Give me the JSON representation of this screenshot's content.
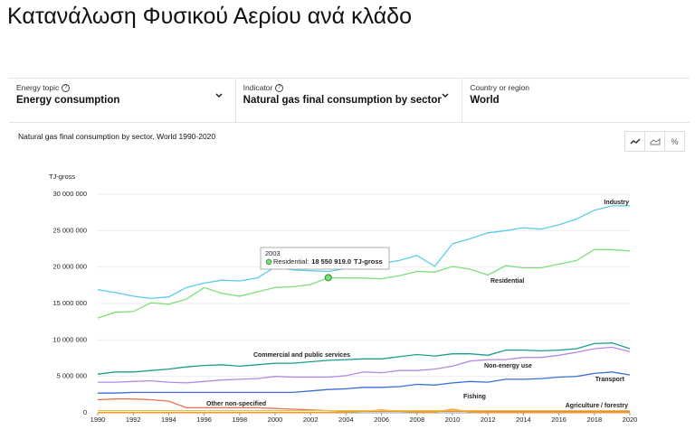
{
  "header": {
    "title": "Κατανάλωση Φυσικού Αερίου ανά κλάδο"
  },
  "selectors": [
    {
      "label": "Energy topic",
      "value": "Energy consumption"
    },
    {
      "label": "Indicator",
      "value": "Natural gas final consumption by sector"
    },
    {
      "label": "Country or region",
      "value": "World"
    }
  ],
  "percent_button": "%",
  "chart_data": {
    "type": "line",
    "title": "Natural gas final consumption by sector, World 1990-2020",
    "ylabel": "TJ-gross",
    "x": [
      1990,
      1991,
      1992,
      1993,
      1994,
      1995,
      1996,
      1997,
      1998,
      1999,
      2000,
      2001,
      2002,
      2003,
      2004,
      2005,
      2006,
      2007,
      2008,
      2009,
      2010,
      2011,
      2012,
      2013,
      2014,
      2015,
      2016,
      2017,
      2018,
      2019,
      2020
    ],
    "xlim": [
      1990,
      2020
    ],
    "xticks": [
      1990,
      1992,
      1994,
      1996,
      1998,
      2000,
      2002,
      2004,
      2006,
      2008,
      2010,
      2012,
      2014,
      2016,
      2018,
      2020
    ],
    "ylim": [
      0,
      30000000
    ],
    "yticks": [
      {
        "value": 0,
        "label": "0"
      },
      {
        "value": 5000000,
        "label": "5 000 000"
      },
      {
        "value": 10000000,
        "label": "10 000 000"
      },
      {
        "value": 15000000,
        "label": "15 000 000"
      },
      {
        "value": 20000000,
        "label": "20 000 000"
      },
      {
        "value": 25000000,
        "label": "25 000 000"
      },
      {
        "value": 30000000,
        "label": "30 000 000"
      }
    ],
    "grid": true,
    "series": [
      {
        "name": "Industry",
        "color": "#5ccbeb",
        "values": [
          16900000,
          16500000,
          16000000,
          15700000,
          15900000,
          17200000,
          17800000,
          18200000,
          18100000,
          18500000,
          20000000,
          19600000,
          19500000,
          19400000,
          19800000,
          20300000,
          20500000,
          20900000,
          21600000,
          20100000,
          23200000,
          23900000,
          24700000,
          25000000,
          25400000,
          25200000,
          25800000,
          26600000,
          27800000,
          28400000,
          28400000
        ]
      },
      {
        "name": "Residential",
        "color": "#7ddf7a",
        "values": [
          13000000,
          13800000,
          13900000,
          15100000,
          14900000,
          15600000,
          17200000,
          16400000,
          16000000,
          16600000,
          17200000,
          17300000,
          17600000,
          18550919,
          18500000,
          18500000,
          18400000,
          18800000,
          19400000,
          19300000,
          20100000,
          19700000,
          18900000,
          20200000,
          19900000,
          19900000,
          20400000,
          20900000,
          22400000,
          22400000,
          22200000
        ]
      },
      {
        "name": "Commercial and public services",
        "color": "#1a9e8c",
        "values": [
          5300000,
          5600000,
          5600000,
          5800000,
          6000000,
          6300000,
          6500000,
          6600000,
          6400000,
          6600000,
          6800000,
          6800000,
          7000000,
          7200000,
          7300000,
          7400000,
          7400000,
          7700000,
          8000000,
          7800000,
          8100000,
          8100000,
          7900000,
          8600000,
          8600000,
          8500000,
          8600000,
          8800000,
          9500000,
          9600000,
          8800000
        ]
      },
      {
        "name": "Non-energy use",
        "color": "#b38ae0",
        "values": [
          4200000,
          4200000,
          4300000,
          4400000,
          4200000,
          4100000,
          4300000,
          4500000,
          4600000,
          4700000,
          5000000,
          4900000,
          4900000,
          4900000,
          5100000,
          5600000,
          5500000,
          5800000,
          5800000,
          6000000,
          6400000,
          7100000,
          7300000,
          7300000,
          7600000,
          7600000,
          7900000,
          8300000,
          8800000,
          9000000,
          8400000
        ]
      },
      {
        "name": "Transport",
        "color": "#3b6fd6",
        "values": [
          2700000,
          2700000,
          2800000,
          2800000,
          2800000,
          2800000,
          2800000,
          2800000,
          2800000,
          2800000,
          2800000,
          2800000,
          3000000,
          3200000,
          3300000,
          3500000,
          3500000,
          3600000,
          3900000,
          3800000,
          4100000,
          4300000,
          4200000,
          4600000,
          4600000,
          4700000,
          4900000,
          5000000,
          5400000,
          5600000,
          5200000
        ]
      },
      {
        "name": "Other non-specified",
        "color": "#f07050",
        "values": [
          1800000,
          1900000,
          1900000,
          1800000,
          1600000,
          700000,
          700000,
          700000,
          700000,
          700000,
          600000,
          500000,
          400000,
          300000,
          200000,
          200000,
          200000,
          200000,
          200000,
          200000,
          200000,
          200000,
          200000,
          200000,
          200000,
          200000,
          200000,
          200000,
          200000,
          200000,
          200000
        ]
      },
      {
        "name": "Fishing",
        "color": "#f29a2e",
        "values": [
          50000,
          50000,
          50000,
          50000,
          50000,
          50000,
          50000,
          50000,
          50000,
          50000,
          50000,
          50000,
          50000,
          50000,
          100000,
          200000,
          400000,
          200000,
          100000,
          100000,
          500000,
          100000,
          50000,
          50000,
          50000,
          50000,
          50000,
          50000,
          50000,
          50000,
          50000
        ]
      },
      {
        "name": "Agriculture / forestry",
        "color": "#e6c53c",
        "values": [
          300000,
          300000,
          300000,
          300000,
          300000,
          300000,
          300000,
          300000,
          300000,
          300000,
          300000,
          300000,
          300000,
          300000,
          300000,
          300000,
          300000,
          300000,
          300000,
          300000,
          300000,
          300000,
          300000,
          300000,
          300000,
          300000,
          300000,
          300000,
          300000,
          300000,
          300000
        ]
      }
    ],
    "tooltip": {
      "x": 2003,
      "series_label": "Residential:",
      "value": 18550919,
      "value_label": "18 550 919.0",
      "unit": "TJ-gross"
    }
  }
}
